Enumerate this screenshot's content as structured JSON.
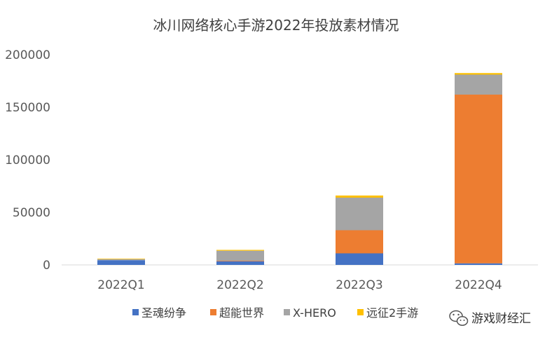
{
  "chart_data": {
    "type": "bar",
    "stacked": true,
    "title": "冰川网络核心手游2022年投放素材情况",
    "xlabel": "",
    "ylabel": "",
    "categories": [
      "2022Q1",
      "2022Q2",
      "2022Q3",
      "2022Q4"
    ],
    "ylim": [
      0,
      200000
    ],
    "yticks": [
      0,
      50000,
      100000,
      150000,
      200000
    ],
    "grid": false,
    "legend_position": "bottom",
    "series": [
      {
        "name": "圣魂纷争",
        "color": "#4472C4",
        "values": [
          4500,
          3500,
          11000,
          1500
        ]
      },
      {
        "name": "超能世界",
        "color": "#ED7D31",
        "values": [
          0,
          500,
          22000,
          160500
        ]
      },
      {
        "name": "X-HERO",
        "color": "#A5A5A5",
        "values": [
          1000,
          9500,
          31000,
          19000
        ]
      },
      {
        "name": "远征2手游",
        "color": "#FFC000",
        "values": [
          500,
          800,
          2000,
          1500
        ]
      }
    ]
  },
  "watermark": {
    "text": "游戏财经汇",
    "icon": "wechat-icon"
  }
}
